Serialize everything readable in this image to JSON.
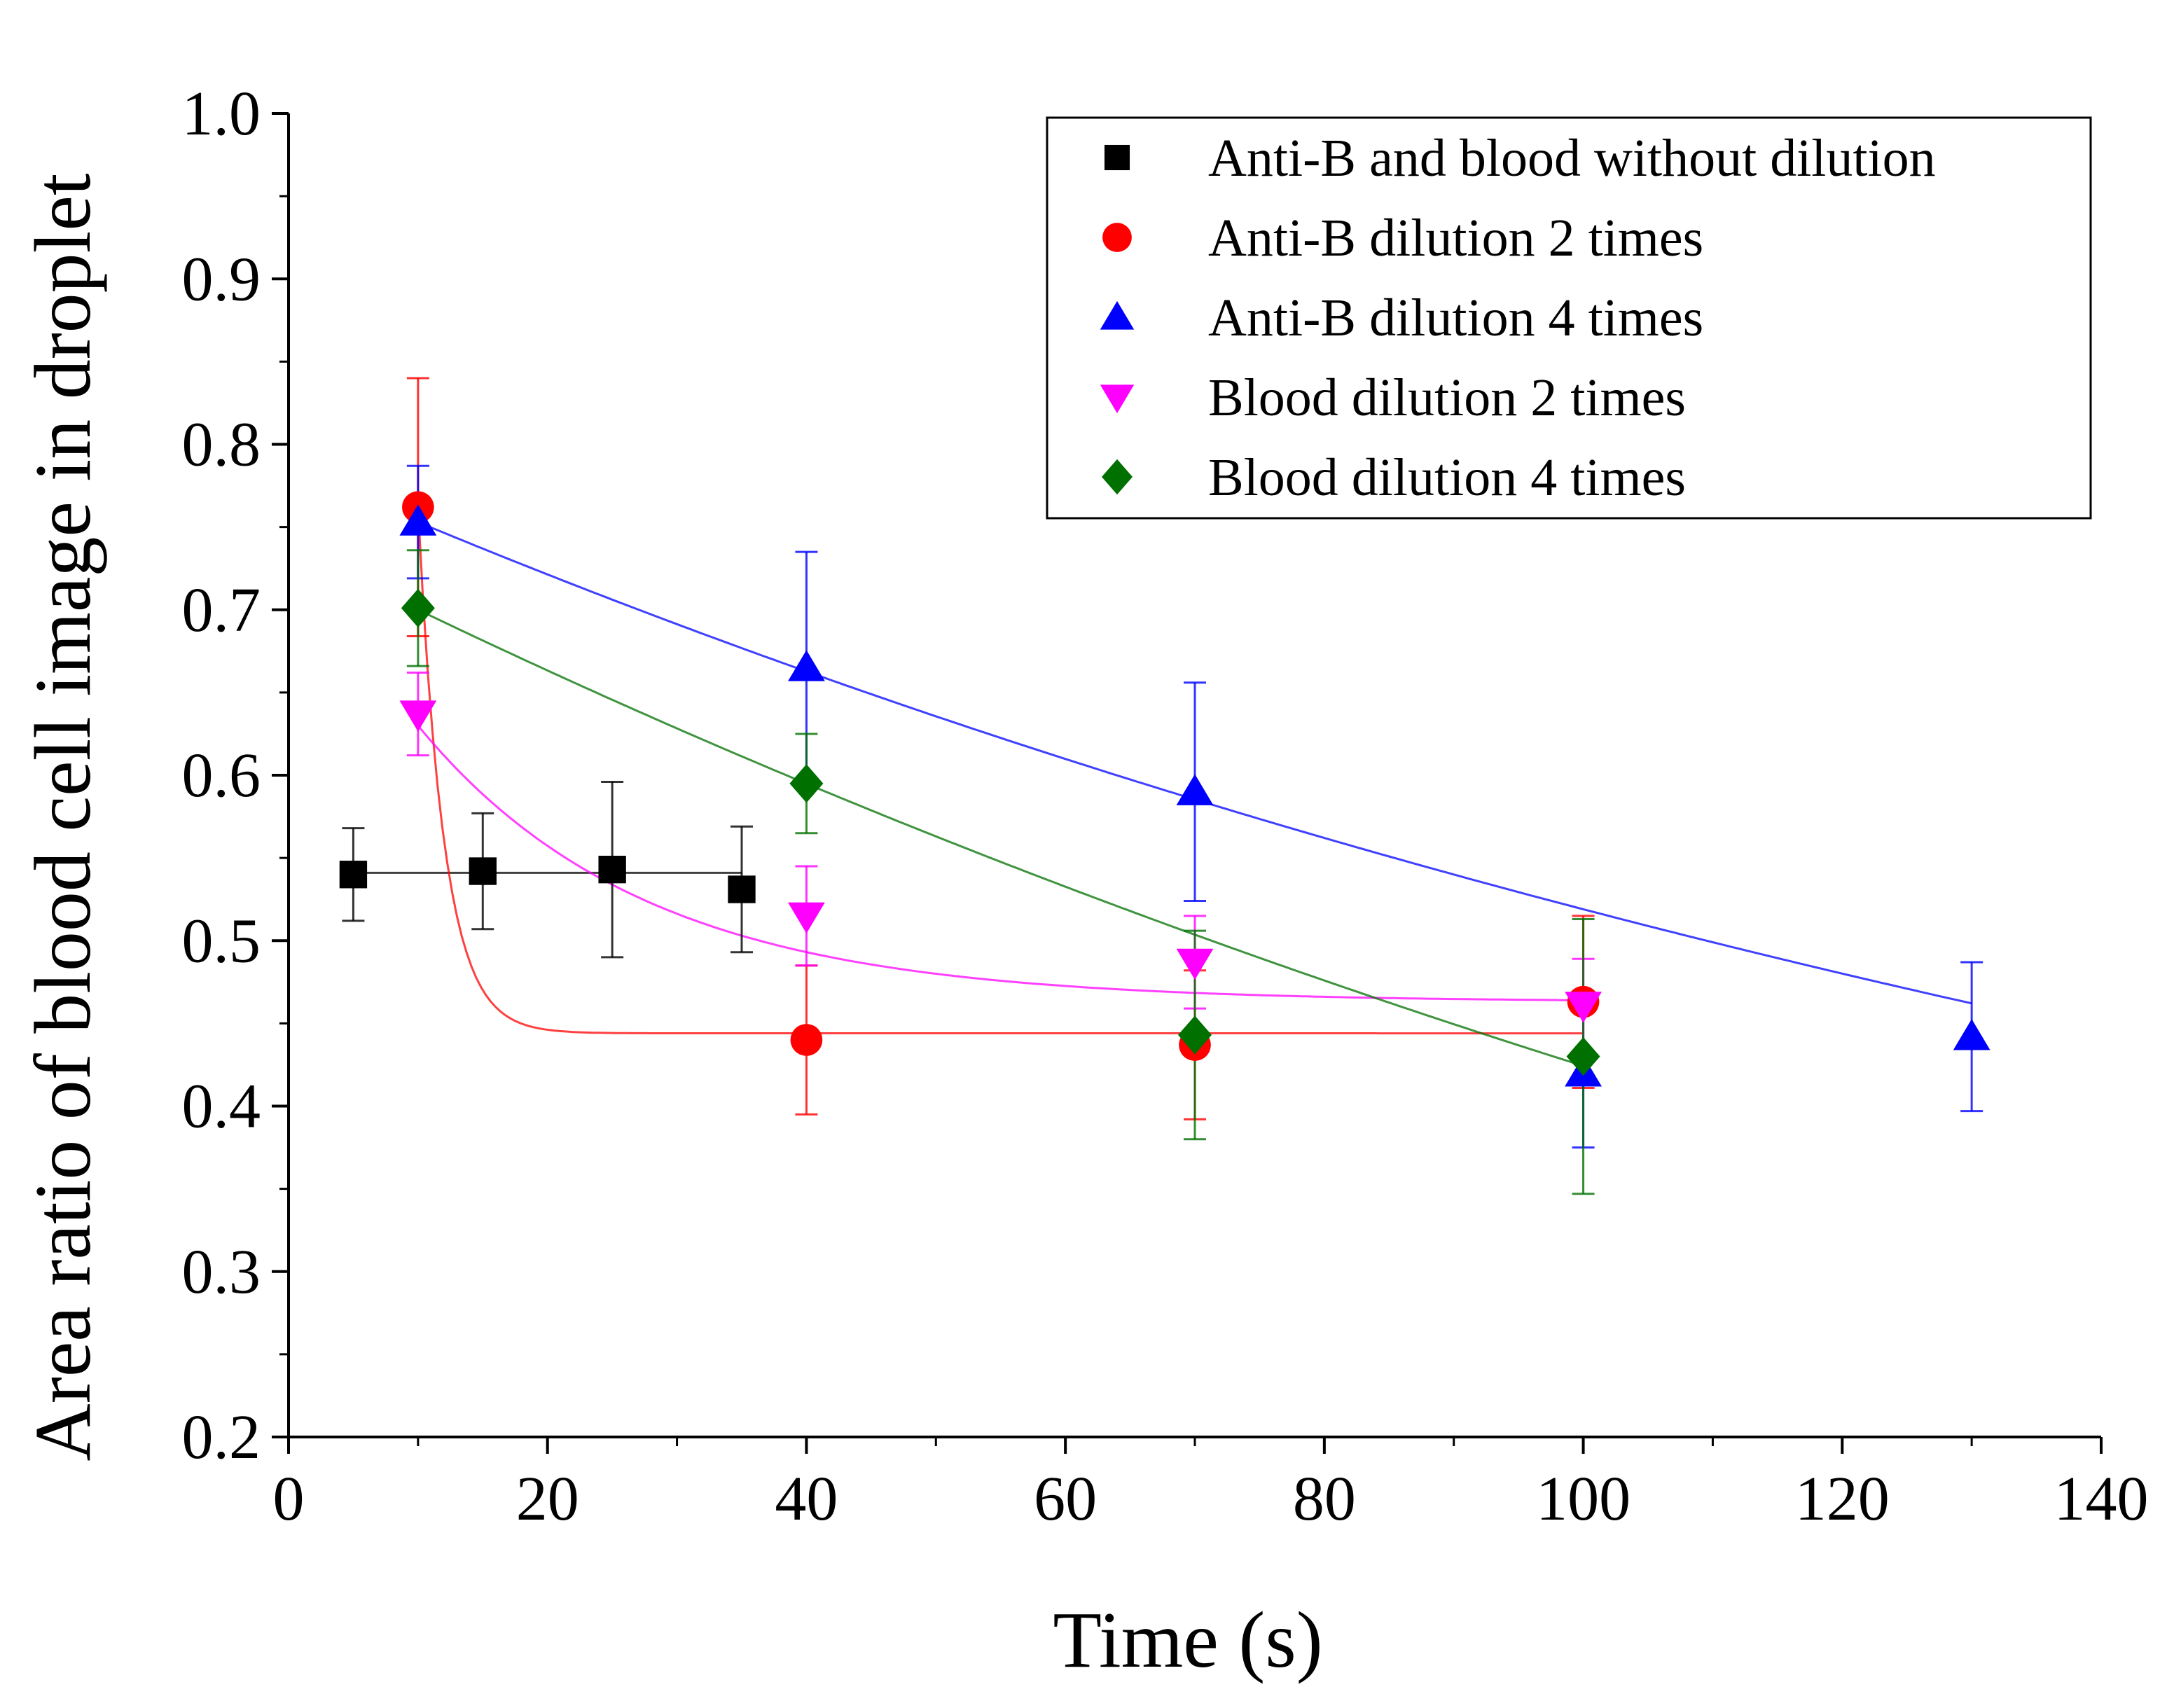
{
  "chart_data": {
    "type": "scatter",
    "title": "",
    "xlabel": "Time (s)",
    "ylabel": "Area ratio of blood cell image in droplet",
    "xlim": [
      0,
      140
    ],
    "ylim": [
      0.2,
      1.0
    ],
    "x_ticks": [
      0,
      20,
      40,
      60,
      80,
      100,
      120,
      140
    ],
    "x_tick_labels": [
      "0",
      "20",
      "40",
      "60",
      "80",
      "100",
      "120",
      "140"
    ],
    "y_ticks": [
      0.2,
      0.3,
      0.4,
      0.5,
      0.6,
      0.7,
      0.8,
      0.9,
      1.0
    ],
    "y_tick_labels": [
      "0.2",
      "0.3",
      "0.4",
      "0.5",
      "0.6",
      "0.7",
      "0.8",
      "0.9",
      "1.0"
    ],
    "grid": false,
    "legend_position": "top-right",
    "series": [
      {
        "name": "Anti-B and blood without dilution",
        "color": "#000000",
        "marker": "square",
        "x": [
          5,
          15,
          25,
          35
        ],
        "y": [
          0.54,
          0.542,
          0.543,
          0.531
        ],
        "err": [
          0.028,
          0.035,
          0.053,
          0.038
        ],
        "fit": {
          "kind": "flat",
          "value": 0.541,
          "x_range": [
            5,
            35
          ]
        }
      },
      {
        "name": "Anti-B dilution 2 times",
        "color": "#ff0000",
        "marker": "circle",
        "x": [
          10,
          40,
          70,
          100
        ],
        "y": [
          0.762,
          0.44,
          0.437,
          0.463
        ],
        "err": [
          0.078,
          0.045,
          0.045,
          0.052
        ],
        "fit": {
          "kind": "exp",
          "y0": 0.444,
          "A": 0.318,
          "t0": 10,
          "tau": 2.0,
          "x_range": [
            10,
            100
          ]
        }
      },
      {
        "name": "Anti-B dilution 4 times",
        "color": "#0000ff",
        "marker": "triangle-up",
        "x": [
          10,
          40,
          70,
          100,
          130
        ],
        "y": [
          0.753,
          0.665,
          0.59,
          0.42,
          0.442
        ],
        "err": [
          0.034,
          0.07,
          0.066,
          0.045,
          0.045
        ],
        "fit": {
          "kind": "exp",
          "y0": 0.12,
          "A": 0.633,
          "t0": 10,
          "tau": 195,
          "x_range": [
            10,
            130
          ]
        }
      },
      {
        "name": "Blood dilution 2 times",
        "color": "#ff00ff",
        "marker": "triangle-down",
        "x": [
          10,
          40,
          70,
          100
        ],
        "y": [
          0.637,
          0.515,
          0.487,
          0.461
        ],
        "err": [
          0.025,
          0.03,
          0.028,
          0.028
        ],
        "fit": {
          "kind": "exp",
          "y0": 0.463,
          "A": 0.167,
          "t0": 10,
          "tau": 17.5,
          "x_range": [
            10,
            100
          ]
        }
      },
      {
        "name": "Blood dilution 4 times",
        "color": "#007000",
        "marker": "diamond",
        "x": [
          10,
          40,
          70,
          100
        ],
        "y": [
          0.701,
          0.595,
          0.443,
          0.43
        ],
        "err": [
          0.035,
          0.03,
          0.063,
          0.083
        ],
        "fit": {
          "kind": "exp",
          "y0": -0.1,
          "A": 0.8,
          "t0": 10,
          "tau": 213,
          "x_range": [
            10,
            100
          ]
        }
      }
    ]
  }
}
